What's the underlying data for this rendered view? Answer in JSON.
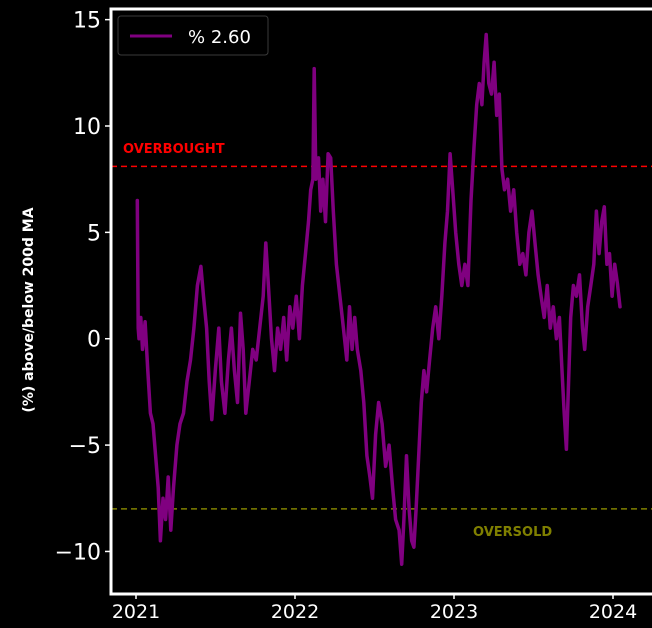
{
  "colors": {
    "background": "#000000",
    "frame": "#ffffff",
    "series": "#800080",
    "overbought": "#ff0000",
    "oversold": "#808000",
    "tick_text": "#ffffff"
  },
  "chart_data": {
    "type": "line",
    "ylabel": "(%) above/below 200d MA",
    "xlabel": "",
    "ylim": [
      -12,
      15.5
    ],
    "x_ticks": [
      "2021",
      "2022",
      "2023",
      "2024"
    ],
    "y_ticks": [
      -10,
      -5,
      0,
      5,
      10,
      15
    ],
    "y_tick_labels": [
      "−10",
      "−5",
      "0",
      "5",
      "10",
      "15"
    ],
    "legend": {
      "position": "top-left",
      "label": "% 2.60"
    },
    "grid": false,
    "overbought": {
      "label": "OVERBOUGHT",
      "value": 8.1
    },
    "oversold": {
      "label": "OVERSOLD",
      "value": -8.0
    },
    "series": [
      {
        "name": "% 2.60",
        "color": "#800080",
        "points": [
          [
            "2021-01-04",
            6.5
          ],
          [
            "2021-01-06",
            0.5
          ],
          [
            "2021-01-08",
            0.0
          ],
          [
            "2021-01-12",
            1.0
          ],
          [
            "2021-01-16",
            -0.5
          ],
          [
            "2021-01-22",
            0.8
          ],
          [
            "2021-01-28",
            -1.5
          ],
          [
            "2021-02-03",
            -3.5
          ],
          [
            "2021-02-09",
            -4.0
          ],
          [
            "2021-02-15",
            -5.5
          ],
          [
            "2021-02-21",
            -7.0
          ],
          [
            "2021-02-26",
            -9.5
          ],
          [
            "2021-03-04",
            -7.5
          ],
          [
            "2021-03-10",
            -8.5
          ],
          [
            "2021-03-16",
            -6.5
          ],
          [
            "2021-03-22",
            -9.0
          ],
          [
            "2021-03-28",
            -7.0
          ],
          [
            "2021-04-05",
            -5.0
          ],
          [
            "2021-04-12",
            -4.0
          ],
          [
            "2021-04-20",
            -3.5
          ],
          [
            "2021-04-28",
            -2.0
          ],
          [
            "2021-05-06",
            -1.0
          ],
          [
            "2021-05-14",
            0.5
          ],
          [
            "2021-05-22",
            2.5
          ],
          [
            "2021-05-30",
            3.4
          ],
          [
            "2021-06-05",
            2.0
          ],
          [
            "2021-06-12",
            0.5
          ],
          [
            "2021-06-18",
            -2.0
          ],
          [
            "2021-06-24",
            -3.8
          ],
          [
            "2021-07-02",
            -1.5
          ],
          [
            "2021-07-10",
            0.5
          ],
          [
            "2021-07-16",
            -2.0
          ],
          [
            "2021-07-24",
            -3.5
          ],
          [
            "2021-08-01",
            -1.0
          ],
          [
            "2021-08-08",
            0.5
          ],
          [
            "2021-08-15",
            -1.5
          ],
          [
            "2021-08-22",
            -3.0
          ],
          [
            "2021-08-29",
            1.2
          ],
          [
            "2021-09-04",
            -0.5
          ],
          [
            "2021-09-10",
            -3.5
          ],
          [
            "2021-09-18",
            -2.0
          ],
          [
            "2021-09-26",
            -0.5
          ],
          [
            "2021-10-04",
            -1.0
          ],
          [
            "2021-10-12",
            0.5
          ],
          [
            "2021-10-20",
            2.0
          ],
          [
            "2021-10-26",
            4.5
          ],
          [
            "2021-11-01",
            2.5
          ],
          [
            "2021-11-08",
            0.0
          ],
          [
            "2021-11-15",
            -1.5
          ],
          [
            "2021-11-22",
            0.5
          ],
          [
            "2021-11-29",
            -0.5
          ],
          [
            "2021-12-06",
            1.0
          ],
          [
            "2021-12-13",
            -1.0
          ],
          [
            "2021-12-20",
            1.5
          ],
          [
            "2021-12-27",
            0.5
          ],
          [
            "2022-01-04",
            2.0
          ],
          [
            "2022-01-11",
            0.0
          ],
          [
            "2022-01-18",
            2.5
          ],
          [
            "2022-01-25",
            4.0
          ],
          [
            "2022-02-01",
            5.5
          ],
          [
            "2022-02-06",
            7.0
          ],
          [
            "2022-02-11",
            7.5
          ],
          [
            "2022-02-14",
            12.7
          ],
          [
            "2022-02-18",
            7.5
          ],
          [
            "2022-02-24",
            8.5
          ],
          [
            "2022-03-01",
            6.0
          ],
          [
            "2022-03-06",
            7.5
          ],
          [
            "2022-03-12",
            5.5
          ],
          [
            "2022-03-18",
            8.7
          ],
          [
            "2022-03-24",
            8.5
          ],
          [
            "2022-03-30",
            6.0
          ],
          [
            "2022-04-06",
            3.5
          ],
          [
            "2022-04-14",
            2.0
          ],
          [
            "2022-04-22",
            0.5
          ],
          [
            "2022-04-30",
            -1.0
          ],
          [
            "2022-05-06",
            1.5
          ],
          [
            "2022-05-12",
            -0.5
          ],
          [
            "2022-05-18",
            1.0
          ],
          [
            "2022-05-24",
            -0.5
          ],
          [
            "2022-06-01",
            -1.5
          ],
          [
            "2022-06-08",
            -3.0
          ],
          [
            "2022-06-15",
            -5.5
          ],
          [
            "2022-06-22",
            -6.5
          ],
          [
            "2022-06-28",
            -7.5
          ],
          [
            "2022-07-05",
            -4.5
          ],
          [
            "2022-07-12",
            -3.0
          ],
          [
            "2022-07-20",
            -4.0
          ],
          [
            "2022-07-28",
            -6.0
          ],
          [
            "2022-08-05",
            -5.0
          ],
          [
            "2022-08-13",
            -7.0
          ],
          [
            "2022-08-20",
            -8.5
          ],
          [
            "2022-08-28",
            -9.0
          ],
          [
            "2022-09-03",
            -10.6
          ],
          [
            "2022-09-08",
            -8.5
          ],
          [
            "2022-09-14",
            -5.5
          ],
          [
            "2022-09-20",
            -8.0
          ],
          [
            "2022-09-26",
            -9.5
          ],
          [
            "2022-10-01",
            -9.8
          ],
          [
            "2022-10-06",
            -8.0
          ],
          [
            "2022-10-12",
            -5.5
          ],
          [
            "2022-10-18",
            -3.0
          ],
          [
            "2022-10-24",
            -1.5
          ],
          [
            "2022-10-30",
            -2.5
          ],
          [
            "2022-11-06",
            -1.0
          ],
          [
            "2022-11-13",
            0.5
          ],
          [
            "2022-11-20",
            1.5
          ],
          [
            "2022-11-27",
            0.0
          ],
          [
            "2022-12-04",
            2.0
          ],
          [
            "2022-12-11",
            4.5
          ],
          [
            "2022-12-17",
            6.0
          ],
          [
            "2022-12-23",
            8.7
          ],
          [
            "2022-12-29",
            7.0
          ],
          [
            "2023-01-05",
            5.0
          ],
          [
            "2023-01-12",
            3.5
          ],
          [
            "2023-01-19",
            2.5
          ],
          [
            "2023-01-26",
            3.5
          ],
          [
            "2023-02-02",
            2.5
          ],
          [
            "2023-02-09",
            6.5
          ],
          [
            "2023-02-16",
            9.0
          ],
          [
            "2023-02-22",
            11.0
          ],
          [
            "2023-02-28",
            12.0
          ],
          [
            "2023-03-06",
            11.0
          ],
          [
            "2023-03-11",
            13.0
          ],
          [
            "2023-03-16",
            14.3
          ],
          [
            "2023-03-22",
            12.0
          ],
          [
            "2023-03-28",
            11.5
          ],
          [
            "2023-04-03",
            13.0
          ],
          [
            "2023-04-09",
            10.5
          ],
          [
            "2023-04-15",
            11.5
          ],
          [
            "2023-04-21",
            8.0
          ],
          [
            "2023-04-27",
            7.0
          ],
          [
            "2023-05-04",
            7.5
          ],
          [
            "2023-05-11",
            6.0
          ],
          [
            "2023-05-18",
            7.0
          ],
          [
            "2023-05-25",
            5.0
          ],
          [
            "2023-06-01",
            3.5
          ],
          [
            "2023-06-08",
            4.0
          ],
          [
            "2023-06-15",
            3.0
          ],
          [
            "2023-06-22",
            5.0
          ],
          [
            "2023-06-29",
            6.0
          ],
          [
            "2023-07-06",
            4.5
          ],
          [
            "2023-07-13",
            3.0
          ],
          [
            "2023-07-20",
            2.0
          ],
          [
            "2023-07-27",
            1.0
          ],
          [
            "2023-08-03",
            2.5
          ],
          [
            "2023-08-10",
            0.5
          ],
          [
            "2023-08-17",
            1.5
          ],
          [
            "2023-08-24",
            0.0
          ],
          [
            "2023-08-31",
            1.0
          ],
          [
            "2023-09-06",
            -1.5
          ],
          [
            "2023-09-11",
            -3.5
          ],
          [
            "2023-09-16",
            -5.2
          ],
          [
            "2023-09-21",
            -2.0
          ],
          [
            "2023-09-26",
            1.0
          ],
          [
            "2023-10-02",
            2.5
          ],
          [
            "2023-10-09",
            2.0
          ],
          [
            "2023-10-16",
            3.0
          ],
          [
            "2023-10-23",
            0.5
          ],
          [
            "2023-10-28",
            -0.5
          ],
          [
            "2023-11-04",
            1.5
          ],
          [
            "2023-11-11",
            2.5
          ],
          [
            "2023-11-18",
            3.5
          ],
          [
            "2023-11-24",
            6.0
          ],
          [
            "2023-11-30",
            4.0
          ],
          [
            "2023-12-06",
            5.5
          ],
          [
            "2023-12-12",
            6.2
          ],
          [
            "2023-12-18",
            3.5
          ],
          [
            "2023-12-24",
            4.0
          ],
          [
            "2023-12-30",
            2.0
          ],
          [
            "2024-01-05",
            3.5
          ],
          [
            "2024-01-11",
            2.6
          ],
          [
            "2024-01-17",
            1.5
          ]
        ]
      }
    ]
  }
}
